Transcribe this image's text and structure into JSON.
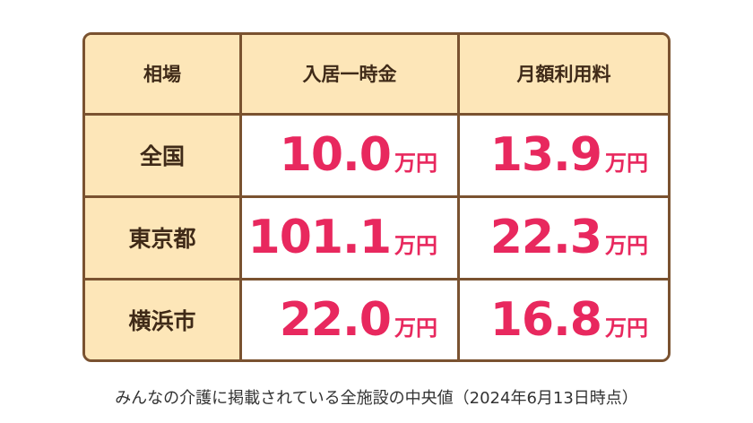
{
  "table": {
    "header": [
      "相場",
      "入居一時金",
      "月額利用料"
    ],
    "rows": [
      {
        "label": "全国",
        "cells": [
          {
            "value": "10.0",
            "unit": "万円"
          },
          {
            "value": "13.9",
            "unit": "万円"
          }
        ]
      },
      {
        "label": "東京都",
        "cells": [
          {
            "value": "101.1",
            "unit": "万円"
          },
          {
            "value": "22.3",
            "unit": "万円"
          }
        ]
      },
      {
        "label": "横浜市",
        "cells": [
          {
            "value": "22.0",
            "unit": "万円"
          },
          {
            "value": "16.8",
            "unit": "万円"
          }
        ]
      }
    ]
  },
  "caption": "みんなの介護に掲載されている全施設の中央値（2024年6月13日時点）"
}
